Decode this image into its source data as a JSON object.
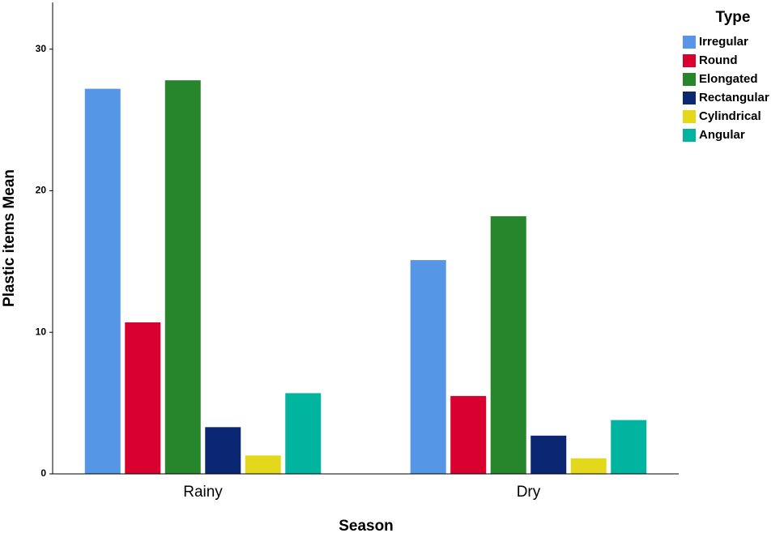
{
  "chart_data": {
    "type": "bar",
    "x_label": "Season",
    "y_label": "Plastic items Mean",
    "categories": [
      "Rainy",
      "Dry"
    ],
    "legend_title": "Type",
    "series": [
      {
        "name": "Irregular",
        "color": "#5596e6",
        "values": [
          27.2,
          15.1
        ]
      },
      {
        "name": "Round",
        "color": "#d9002f",
        "values": [
          10.7,
          5.5
        ]
      },
      {
        "name": "Elongated",
        "color": "#27862b",
        "values": [
          27.8,
          18.2
        ]
      },
      {
        "name": "Rectangular",
        "color": "#0b2773",
        "values": [
          3.3,
          2.7
        ]
      },
      {
        "name": "Cylindrical",
        "color": "#e3d81b",
        "values": [
          1.3,
          1.1
        ]
      },
      {
        "name": "Angular",
        "color": "#00b4a0",
        "values": [
          5.7,
          3.8
        ]
      }
    ],
    "ylim": [
      0,
      33.3
    ],
    "yticks": [
      0,
      10,
      20,
      30
    ],
    "grid": false,
    "legend": "right"
  }
}
